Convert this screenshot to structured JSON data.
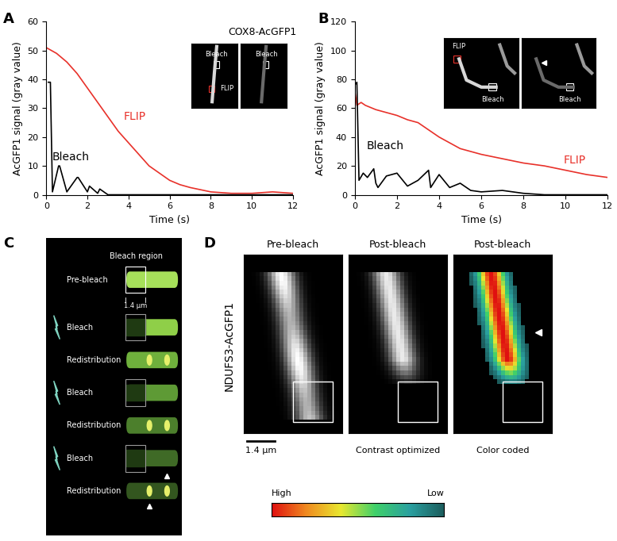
{
  "chart_data": [
    {
      "type": "line",
      "panel_label": "A",
      "title": "COX8-AcGFP1",
      "x_label": "Time (s)",
      "y_label": "AcGFP1 signal (gray value)",
      "xlim": [
        0,
        12
      ],
      "xticks": [
        0,
        2,
        4,
        6,
        8,
        10,
        12
      ],
      "ylim": [
        0,
        60
      ],
      "yticks": [
        0,
        10,
        20,
        30,
        40,
        50,
        60
      ],
      "inset_labels": {
        "bleach": "Bleach",
        "flip": "FLIP"
      },
      "series": [
        {
          "name": "FLIP",
          "color": "#e8312a",
          "x": [
            0,
            0.5,
            1,
            1.5,
            2,
            2.5,
            3,
            3.5,
            4,
            4.5,
            5,
            5.5,
            6,
            6.5,
            7,
            8,
            9,
            10,
            11,
            12
          ],
          "values": [
            51,
            49,
            46,
            42,
            37,
            32,
            27,
            22,
            18,
            14,
            10,
            7.5,
            5,
            3.5,
            2.5,
            1,
            0.5,
            0.5,
            1,
            0.5
          ]
        },
        {
          "name": "Bleach",
          "color": "#000000",
          "x": [
            0.1,
            0.2,
            0.3,
            0.6,
            0.65,
            1.0,
            1.5,
            1.55,
            2.0,
            2.1,
            2.5,
            2.6,
            3.0,
            12
          ],
          "values": [
            39,
            39,
            1,
            10,
            10,
            1,
            6,
            6,
            1,
            3,
            0.5,
            2,
            0,
            0
          ]
        }
      ]
    },
    {
      "type": "line",
      "panel_label": "B",
      "x_label": "Time (s)",
      "y_label": "AcGFP1 signal (gray value)",
      "xlim": [
        0,
        12
      ],
      "xticks": [
        0,
        2,
        4,
        6,
        8,
        10,
        12
      ],
      "ylim": [
        0,
        120
      ],
      "yticks": [
        0,
        20,
        40,
        60,
        80,
        100,
        120
      ],
      "inset_labels": {
        "bleach": "Bleach",
        "flip": "FLIP"
      },
      "series": [
        {
          "name": "FLIP",
          "color": "#e8312a",
          "x": [
            0,
            0.1,
            0.3,
            0.5,
            1,
            1.5,
            2,
            2.5,
            3,
            3.5,
            4,
            5,
            6,
            7,
            8,
            9,
            10,
            11,
            12
          ],
          "values": [
            72,
            62,
            64,
            62,
            59,
            57,
            55,
            52,
            50,
            45,
            40,
            32,
            28,
            25,
            22,
            20,
            17,
            14,
            12
          ]
        },
        {
          "name": "Bleach",
          "color": "#000000",
          "x": [
            0,
            0.1,
            0.2,
            0.4,
            0.6,
            0.9,
            1.0,
            1.1,
            1.5,
            2,
            2.5,
            3,
            3.5,
            3.6,
            4,
            4.5,
            5,
            5.5,
            6,
            7,
            8,
            9,
            12
          ],
          "values": [
            76,
            78,
            10,
            15,
            12,
            18,
            8,
            5,
            13,
            15,
            6,
            10,
            17,
            5,
            14,
            5,
            8,
            3,
            2,
            3,
            1,
            0,
            0
          ]
        }
      ]
    }
  ],
  "diagram": {
    "panel_label": "C",
    "bleach_region": "Bleach region",
    "scale": "1.4 μm",
    "steps": [
      "Pre-bleach",
      "Bleach",
      "Redistribution",
      "Bleach",
      "Redistribution",
      "Bleach",
      "Redistribution"
    ]
  },
  "images": {
    "panel_label": "D",
    "protein": "NDUFS3-AcGFP1",
    "scale_bar": "1.4 μm",
    "panels": [
      {
        "title": "Pre-bleach"
      },
      {
        "title": "Post-bleach",
        "caption": "Contrast optimized"
      },
      {
        "title": "Post-bleach",
        "caption": "Color coded"
      }
    ],
    "colorbar": {
      "high": "High",
      "low": "Low"
    }
  }
}
